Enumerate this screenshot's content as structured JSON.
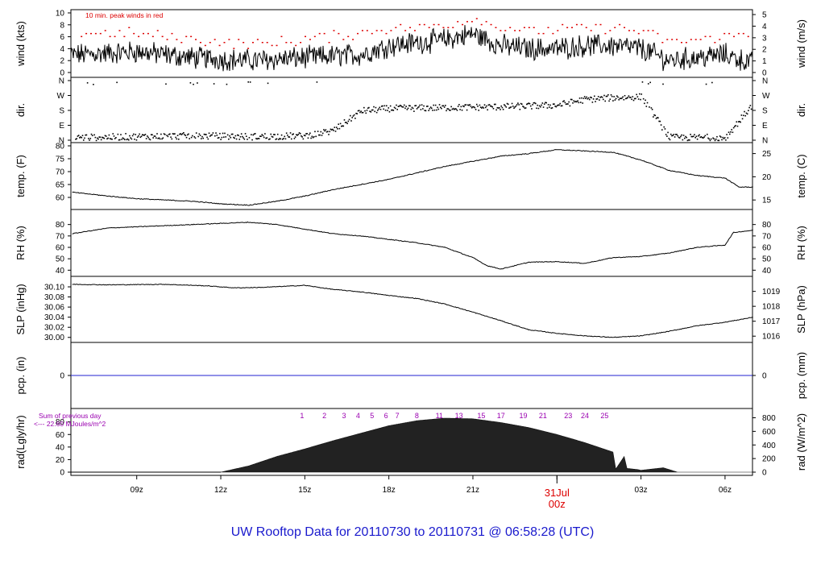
{
  "title": "UW Rooftop Data for 20110730  to  20110731 @ 06:58:28  (UTC)",
  "colors": {
    "title": "#1a1acd",
    "red": "#dd0000",
    "purple": "#9a00b0",
    "blue": "#2020d0",
    "line": "#000000"
  },
  "chart_data": [
    {
      "type": "line",
      "id": "wind",
      "ylabel_left": "wind (kts)",
      "ylabel_right": "wind (m/s)",
      "ylim": [
        0,
        10
      ],
      "yticks_left": [
        0,
        2,
        4,
        6,
        8,
        10
      ],
      "yticks_right": [
        "0",
        "1",
        "2",
        "3",
        "4",
        "5"
      ],
      "annotation": "10 min. peak winds in red",
      "series": [
        {
          "values_approx_kts": {
            "x_hours": [
              7,
              9,
              11,
              13,
              15,
              17,
              18,
              19,
              20,
              21,
              22,
              23,
              24,
              25,
              26,
              27,
              28,
              29,
              30,
              31
            ],
            "y": [
              3,
              3.5,
              2.5,
              2,
              2.5,
              3,
              4.5,
              5,
              5.5,
              6.5,
              4.5,
              4,
              4,
              4.5,
              4.5,
              4,
              2,
              2.5,
              3,
              1.5
            ]
          }
        },
        {
          "name_hint": "peak",
          "values_approx_kts": {
            "x_hours": [
              7,
              9,
              11,
              13,
              15,
              17,
              18,
              19,
              20,
              21,
              22,
              23,
              24,
              25,
              26,
              27,
              28,
              29,
              30,
              31
            ],
            "y": [
              6.5,
              6.5,
              5.5,
              4.5,
              5.5,
              6.5,
              7.5,
              7.5,
              8,
              9,
              7.5,
              7,
              7,
              7.5,
              7.5,
              7,
              5,
              5.5,
              6,
              6.5
            ]
          }
        }
      ]
    },
    {
      "type": "scatter",
      "id": "dir",
      "ylabel_left": "dir.",
      "ylabel_right": "dir.",
      "yticks_left": [
        "N",
        "W",
        "S",
        "E",
        "N"
      ],
      "yticks_right": [
        "N",
        "W",
        "S",
        "E",
        "N"
      ],
      "ylim_deg": [
        0,
        360
      ],
      "approx_direction_deg": {
        "x_hours": [
          7,
          9,
          11,
          13,
          15,
          16,
          17,
          18,
          20,
          22,
          24,
          25,
          26,
          27,
          28,
          30,
          31
        ],
        "y": [
          20,
          25,
          30,
          25,
          30,
          60,
          180,
          195,
          200,
          205,
          215,
          250,
          260,
          265,
          20,
          20,
          225
        ]
      }
    },
    {
      "type": "line",
      "id": "temp",
      "ylabel_left": "temp. (F)",
      "ylabel_right": "temp. (C)",
      "ylim": [
        55,
        80
      ],
      "yticks_left": [
        60,
        65,
        70,
        75,
        80
      ],
      "yticks_right": [
        "15",
        "20",
        "25"
      ],
      "x_hours": [
        6.7,
        8,
        9,
        10,
        11,
        12,
        13,
        14,
        15,
        16,
        17,
        18,
        19,
        20,
        21,
        22,
        23,
        24,
        25,
        26,
        27,
        28,
        29,
        30,
        30.5,
        31
      ],
      "values": [
        62,
        60.5,
        59.5,
        59,
        58.5,
        57.5,
        57,
        58.5,
        60.5,
        63,
        65,
        67,
        69.5,
        72,
        74,
        76,
        77,
        78.5,
        78,
        77.5,
        74.5,
        70.5,
        68.5,
        67.5,
        64,
        64
      ]
    },
    {
      "type": "line",
      "id": "rh",
      "ylabel_left": "RH (%)",
      "ylabel_right": "RH (%)",
      "ylim": [
        38,
        85
      ],
      "yticks_left": [
        40,
        50,
        60,
        70,
        80
      ],
      "yticks_right": [
        "40",
        "50",
        "60",
        "70",
        "80"
      ],
      "x_hours": [
        6.7,
        8,
        10,
        12,
        13,
        14,
        15,
        16,
        17,
        18,
        19,
        20,
        21,
        21.5,
        22,
        23,
        24,
        25,
        26,
        27,
        28,
        29,
        30,
        30.3,
        31
      ],
      "values": [
        72,
        77,
        79,
        81,
        82,
        80,
        76,
        72,
        70,
        67,
        64,
        60,
        51,
        44,
        41,
        47,
        47.5,
        46,
        51,
        52,
        55,
        60,
        62,
        73,
        75
      ]
    },
    {
      "type": "line",
      "id": "slp",
      "ylabel_left": "SLP (inHg)",
      "ylabel_right": "SLP (hPa)",
      "ylim": [
        29.995,
        30.115
      ],
      "yticks_left": [
        "30.00",
        "30.02",
        "30.04",
        "30.06",
        "30.08",
        "30.10"
      ],
      "yticks_right": [
        "1016",
        "1017",
        "1018",
        "1019"
      ],
      "x_hours": [
        6.7,
        8,
        10,
        11.5,
        12.5,
        13.5,
        15,
        16,
        17,
        18,
        19,
        20,
        21,
        22,
        23,
        24,
        25,
        26,
        27,
        28,
        29,
        30,
        31
      ],
      "values": [
        30.105,
        30.104,
        30.105,
        30.102,
        30.098,
        30.099,
        30.103,
        30.095,
        30.09,
        30.083,
        30.077,
        30.066,
        30.05,
        30.033,
        30.015,
        30.008,
        30.003,
        30.0,
        30.003,
        30.012,
        30.023,
        30.03,
        30.04
      ]
    },
    {
      "type": "line",
      "id": "pcp",
      "ylabel_left": "pcp. (in)",
      "ylabel_right": "pcp. (mm)",
      "yticks_left": [
        "0"
      ],
      "yticks_right": [
        "0"
      ],
      "x_hours": [
        6.7,
        31
      ],
      "values": [
        0,
        0
      ]
    },
    {
      "type": "area",
      "id": "rad",
      "ylabel_left": "rad(Lgly/hr)",
      "ylabel_right": "rad (W/m^2)",
      "ylim": [
        0,
        90
      ],
      "yticks_left": [
        0,
        20,
        40,
        60,
        80
      ],
      "yticks_right": [
        "0",
        "200",
        "400",
        "600",
        "800"
      ],
      "annotation_lines": [
        "Sum of previous day",
        "<--- 22.60 MJoules/m^2"
      ],
      "hour_labels": [
        "1",
        "2",
        "3",
        "4",
        "5",
        "6",
        "7",
        "8",
        "11",
        "13",
        "15",
        "17",
        "19",
        "21",
        "23",
        "24",
        "25"
      ],
      "x_hours": [
        12,
        13,
        14,
        15,
        16,
        17,
        18,
        19,
        20,
        21,
        22,
        23,
        24,
        25,
        26,
        26.1,
        26.4,
        26.5,
        26.9,
        27,
        27.8,
        28.3,
        29,
        30,
        31
      ],
      "values": [
        0,
        10,
        25,
        37,
        50,
        62,
        74,
        82,
        86,
        85,
        79,
        71,
        60,
        47,
        32,
        5,
        25,
        6,
        4,
        3,
        7,
        0,
        0,
        0,
        0
      ]
    }
  ],
  "x_axis": {
    "ticks": [
      {
        "hour": 9,
        "label": "09z"
      },
      {
        "hour": 12,
        "label": "12z"
      },
      {
        "hour": 15,
        "label": "15z"
      },
      {
        "hour": 18,
        "label": "18z"
      },
      {
        "hour": 21,
        "label": "21z"
      },
      {
        "hour": 24,
        "label": "00z",
        "big": true
      },
      {
        "hour": 27,
        "label": "03z"
      },
      {
        "hour": 30,
        "label": "06z"
      }
    ],
    "date_label": "31Jul",
    "xlim_hours": [
      6.65,
      30.98
    ]
  }
}
